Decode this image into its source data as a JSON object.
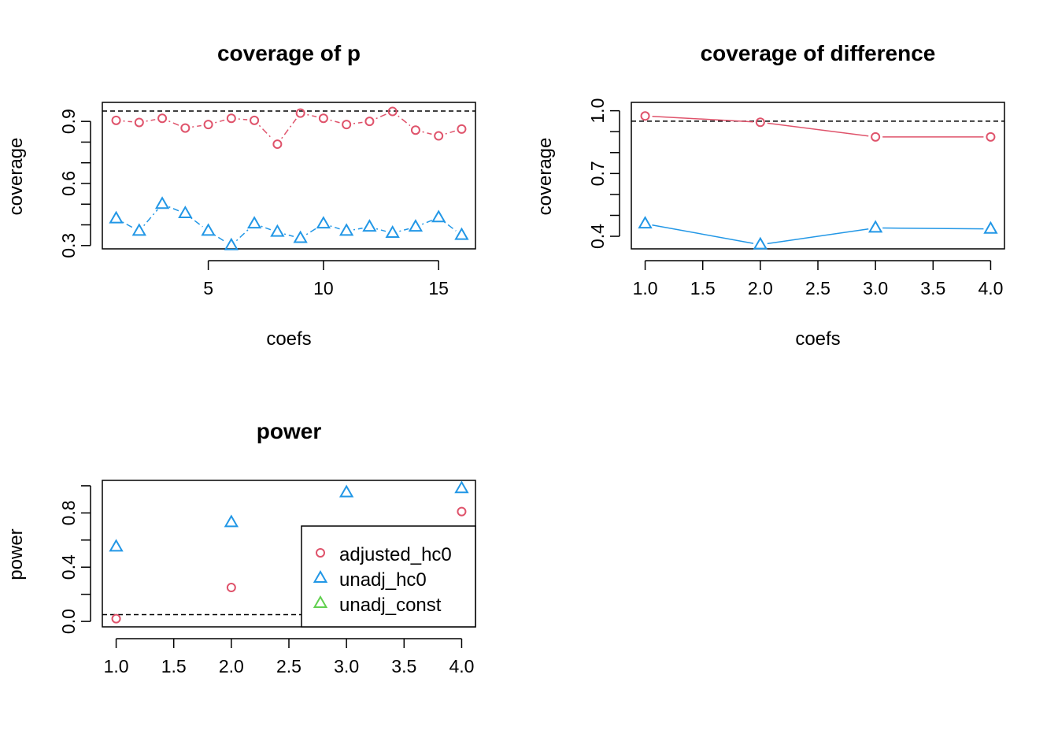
{
  "colors": {
    "adjusted_hc0": "#DF536B",
    "unadj_hc0": "#2297E6",
    "unadj_const": "#61D04F",
    "ref": "#000000"
  },
  "chart_data": [
    {
      "type": "scatter",
      "title": "coverage of p",
      "xlabel": "coefs",
      "ylabel": "coverage",
      "xlim": [
        0.4,
        16.6
      ],
      "ylim": [
        0.284,
        0.992
      ],
      "xticks": [
        5,
        10,
        15
      ],
      "yticks": [
        0.3,
        0.6,
        0.9
      ],
      "yticks_minor": [
        0.4,
        0.5,
        0.7,
        0.8,
        1.0
      ],
      "x": [
        1,
        2,
        3,
        4,
        5,
        6,
        7,
        8,
        9,
        10,
        11,
        12,
        13,
        14,
        15,
        16
      ],
      "reference_line": 0.95,
      "series": [
        {
          "name": "adjusted_hc0",
          "marker": "circle",
          "line": "dotdash",
          "values": [
            0.905,
            0.895,
            0.915,
            0.868,
            0.885,
            0.915,
            0.905,
            0.79,
            0.94,
            0.915,
            0.885,
            0.9,
            0.948,
            0.858,
            0.83,
            0.863
          ]
        },
        {
          "name": "unadj_hc0",
          "marker": "triangle",
          "line": "dotdash",
          "values": [
            0.43,
            0.37,
            0.5,
            0.455,
            0.37,
            0.3,
            0.405,
            0.365,
            0.335,
            0.405,
            0.37,
            0.39,
            0.36,
            0.39,
            0.435,
            0.35
          ]
        }
      ]
    },
    {
      "type": "line",
      "title": "coverage of difference",
      "xlabel": "coefs",
      "ylabel": "coverage",
      "xlim": [
        0.88,
        4.12
      ],
      "ylim": [
        0.34,
        1.04
      ],
      "xticks": [
        1.0,
        1.5,
        2.0,
        2.5,
        3.0,
        3.5,
        4.0
      ],
      "xticklabels": [
        "1.0",
        "1.5",
        "2.0",
        "2.5",
        "3.0",
        "3.5",
        "4.0"
      ],
      "yticks": [
        0.4,
        0.7,
        1.0
      ],
      "yticks_minor": [
        0.5,
        0.6,
        0.8,
        0.9
      ],
      "yticklabels": [
        "0.4",
        "0.7",
        "1.0"
      ],
      "x": [
        1,
        2,
        3,
        4
      ],
      "reference_line": 0.95,
      "series": [
        {
          "name": "adjusted_hc0",
          "marker": "circle",
          "line": "solid",
          "values": [
            0.975,
            0.945,
            0.875,
            0.875
          ]
        },
        {
          "name": "unadj_hc0",
          "marker": "triangle",
          "line": "solid",
          "values": [
            0.46,
            0.36,
            0.44,
            0.435
          ]
        }
      ]
    },
    {
      "type": "scatter",
      "title": "power",
      "xlabel": "",
      "ylabel": "power",
      "xlim": [
        0.88,
        4.12
      ],
      "ylim": [
        -0.04,
        1.04
      ],
      "xticks": [
        1.0,
        1.5,
        2.0,
        2.5,
        3.0,
        3.5,
        4.0
      ],
      "xticklabels": [
        "1.0",
        "1.5",
        "2.0",
        "2.5",
        "3.0",
        "3.5",
        "4.0"
      ],
      "yticks": [
        0.0,
        0.4,
        0.8
      ],
      "yticks_minor": [
        0.2,
        0.6,
        1.0
      ],
      "yticklabels": [
        "0.0",
        "0.4",
        "0.8"
      ],
      "x": [
        1,
        2,
        3,
        4
      ],
      "reference_line": 0.05,
      "legend_position": "bottom-right",
      "series": [
        {
          "name": "adjusted_hc0",
          "marker": "circle",
          "values": [
            0.02,
            0.25,
            null,
            0.81
          ]
        },
        {
          "name": "unadj_hc0",
          "marker": "triangle",
          "values": [
            0.55,
            0.73,
            0.95,
            0.98
          ]
        },
        {
          "name": "unadj_const",
          "marker": "triangle",
          "values": []
        }
      ],
      "legend": [
        "adjusted_hc0",
        "unadj_hc0",
        "unadj_const"
      ]
    }
  ]
}
